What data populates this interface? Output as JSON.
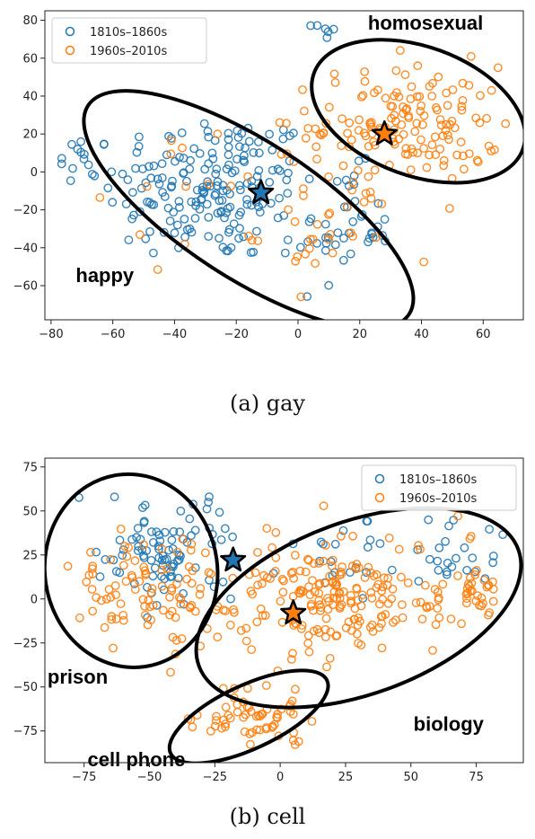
{
  "captions": [
    "(a) gay",
    "(b) cell"
  ],
  "colors": {
    "early": "#1f77b4",
    "late": "#ff7f0e",
    "ellipse": "#000000",
    "axis": "#222222"
  },
  "chart_data": [
    {
      "type": "scatter",
      "word": "gay",
      "xlim": [
        -82,
        73
      ],
      "ylim": [
        -78,
        85
      ],
      "xticks": [
        -80,
        -60,
        -40,
        -20,
        0,
        20,
        40,
        60
      ],
      "yticks": [
        -60,
        -40,
        -20,
        0,
        20,
        40,
        60,
        80
      ],
      "legend_position": "top-left",
      "series": [
        {
          "name": "1810s–1860s",
          "color": "#1f77b4",
          "clusters": [
            {
              "center": [
                -28,
                -8
              ],
              "rx": 32,
              "ry": 36,
              "count": 190
            },
            {
              "center": [
                -70,
                5
              ],
              "rx": 8,
              "ry": 14,
              "count": 12
            },
            {
              "center": [
                15,
                -30
              ],
              "rx": 14,
              "ry": 28,
              "count": 40
            },
            {
              "center": [
                8,
                75
              ],
              "rx": 4,
              "ry": 4,
              "count": 6
            }
          ],
          "representative": [
            -12,
            -11
          ]
        },
        {
          "name": "1960s–2010s",
          "color": "#ff7f0e",
          "clusters": [
            {
              "center": [
                35,
                25
              ],
              "rx": 28,
              "ry": 28,
              "count": 150
            },
            {
              "center": [
                10,
                -30
              ],
              "rx": 20,
              "ry": 28,
              "count": 30
            },
            {
              "center": [
                -30,
                -10
              ],
              "rx": 30,
              "ry": 30,
              "count": 20
            }
          ],
          "representative": [
            28,
            20
          ]
        }
      ],
      "annotations": [
        {
          "text": "homosexual",
          "x": 60,
          "y": 75,
          "anchor": "end"
        },
        {
          "text": "happy",
          "x": -72,
          "y": -58,
          "anchor": "start"
        }
      ],
      "ellipses": [
        {
          "center": [
            -16,
            -20
          ],
          "rx": 62,
          "ry": 36,
          "angle": 33
        },
        {
          "center": [
            39,
            32
          ],
          "rx": 36,
          "ry": 34,
          "angle": 20
        }
      ]
    },
    {
      "type": "scatter",
      "word": "cell",
      "xlim": [
        -90,
        93
      ],
      "ylim": [
        -93,
        80
      ],
      "xticks": [
        -75,
        -50,
        -25,
        0,
        25,
        50,
        75
      ],
      "yticks": [
        -75,
        -50,
        -25,
        0,
        25,
        50,
        75
      ],
      "legend_position": "top-right",
      "series": [
        {
          "name": "1810s–1860s",
          "color": "#1f77b4",
          "clusters": [
            {
              "center": [
                -45,
                25
              ],
              "rx": 22,
              "ry": 25,
              "count": 90
            },
            {
              "center": [
                25,
                20
              ],
              "rx": 30,
              "ry": 20,
              "count": 25
            },
            {
              "center": [
                68,
                25
              ],
              "rx": 15,
              "ry": 15,
              "count": 20
            }
          ],
          "representative": [
            -18,
            22
          ]
        },
        {
          "name": "1960s–2010s",
          "color": "#ff7f0e",
          "clusters": [
            {
              "center": [
                -50,
                5
              ],
              "rx": 25,
              "ry": 30,
              "count": 90
            },
            {
              "center": [
                20,
                0
              ],
              "rx": 42,
              "ry": 34,
              "count": 210
            },
            {
              "center": [
                -10,
                -68
              ],
              "rx": 22,
              "ry": 14,
              "count": 60
            },
            {
              "center": [
                75,
                0
              ],
              "rx": 12,
              "ry": 15,
              "count": 30
            }
          ],
          "representative": [
            5,
            -8
          ]
        }
      ],
      "annotations": [
        {
          "text": "prison",
          "x": -89,
          "y": -48,
          "anchor": "start"
        },
        {
          "text": "biology",
          "x": 51,
          "y": -75,
          "anchor": "start"
        },
        {
          "text": "cell phone",
          "x": -55,
          "y": -95,
          "anchor": "middle"
        }
      ],
      "ellipses": [
        {
          "center": [
            -57,
            16
          ],
          "rx": 33,
          "ry": 55,
          "angle": -8
        },
        {
          "center": [
            30,
            -5
          ],
          "rx": 65,
          "ry": 49,
          "angle": -20
        },
        {
          "center": [
            -12,
            -67
          ],
          "rx": 33,
          "ry": 18,
          "angle": -25
        }
      ]
    }
  ]
}
